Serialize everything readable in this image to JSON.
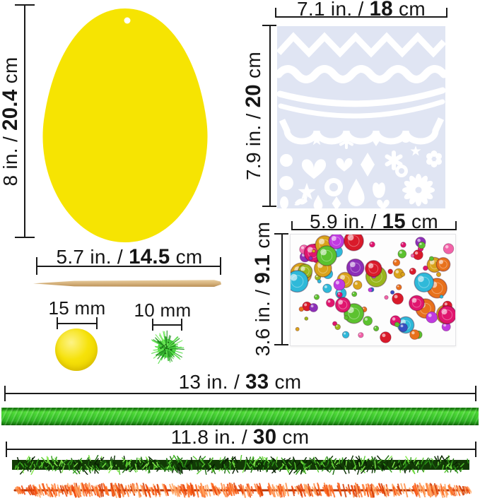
{
  "measurements": {
    "egg_height": {
      "pre": "8 in. / ",
      "bold": "20.4",
      "post": " cm"
    },
    "stencil_width": {
      "pre": "7.1 in. / ",
      "bold": "18",
      "post": " cm"
    },
    "stencil_height": {
      "pre": "7.9 in. / ",
      "bold": "20",
      "post": " cm"
    },
    "gem_sheet_width": {
      "pre": "5.9 in. / ",
      "bold": "15",
      "post": " cm"
    },
    "gem_sheet_height": {
      "pre": "3.6 in. / ",
      "bold": "9.1",
      "post": " cm"
    },
    "stick_length": {
      "pre": "5.7 in. / ",
      "bold": "14.5",
      "post": " cm"
    },
    "ribbon_length": {
      "pre": "13 in. / ",
      "bold": "33",
      "post": " cm"
    },
    "stem_length": {
      "pre": "11.8 in. / ",
      "bold": "30",
      "post": " cm"
    },
    "pompom_large": "15 mm",
    "pompom_small": "10 mm"
  },
  "colors": {
    "egg": "#f6e402",
    "stencil_bg": "#e0e5f3",
    "stencil_shape": "#ffffff",
    "pom_yellow": "#f6e20a",
    "pom_yellow_light": "#fdf386",
    "pom_yellow_deep": "#ecd400",
    "pom_yellow_shadow": "#d8bf00",
    "pom_green": "#46cf3c",
    "ribbon_light": "#52de3a",
    "ribbon_mid": "#3ecb2e",
    "ribbon_deep": "#2fb424",
    "ribbon_edge": "#19820f",
    "ribbon_edge2": "#115c0b",
    "tinsel_core": "#123a06",
    "chenille_core": "#b83503",
    "stick_light": "#e8cd9d",
    "stick_mid": "#d3af79",
    "stick_dark": "#b98f55",
    "gems": [
      "#d91a2a",
      "#e0156e",
      "#f263a8",
      "#2277cc",
      "#2fb9d9",
      "#5cc22f",
      "#9ab71c",
      "#d9a31b",
      "#8c2fb8",
      "#c03ae0",
      "#e8711c",
      "#364fc2"
    ],
    "pom_green_spikes": [
      "#2ea32a",
      "#56df48",
      "#1d8a1c",
      "#74ea5c"
    ],
    "tinsel_strokes": [
      "#0b3003",
      "#1d6b10",
      "#2f9c1a",
      "#55c72e",
      "#82e84c",
      "#071f02"
    ],
    "chenille_strokes": [
      "#f2490a",
      "#ff6a22",
      "#ff8b45",
      "#d63d04",
      "#ffa866"
    ]
  }
}
